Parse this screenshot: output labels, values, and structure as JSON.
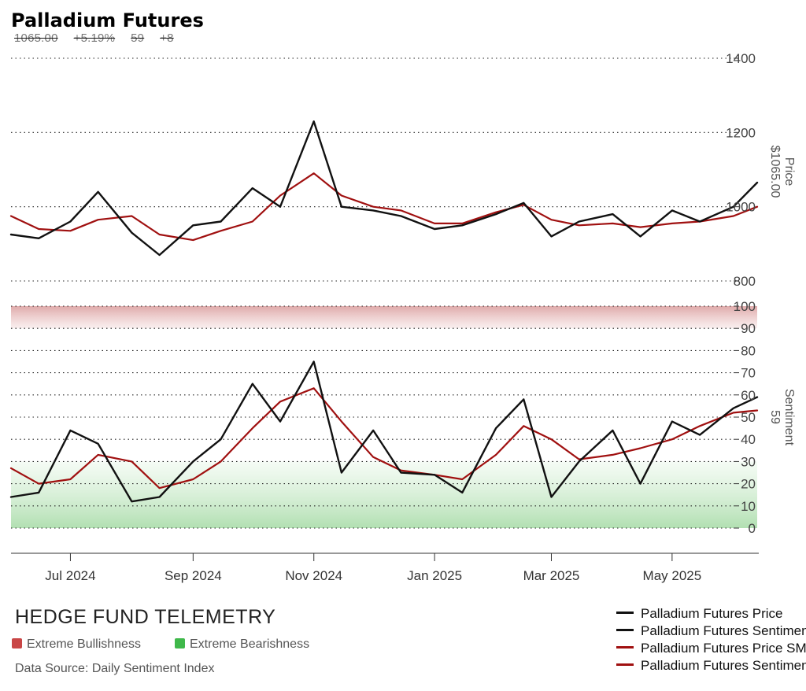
{
  "header": {
    "title": "Palladium Futures",
    "stats": [
      "1065.00",
      "+5.19%",
      "59",
      "+8"
    ]
  },
  "footer": {
    "brand": "HEDGE FUND TELEMETRY",
    "zone_legend": [
      {
        "label": "Extreme Bullishness",
        "color": "#c94646"
      },
      {
        "label": "Extreme Bearishness",
        "color": "#3fb84a"
      }
    ],
    "source": "Data Source: Daily Sentiment Index"
  },
  "legend": [
    {
      "label": "Palladium Futures Price",
      "color": "#111111"
    },
    {
      "label": "Palladium Futures Sentiment",
      "color": "#111111"
    },
    {
      "label": "Palladium Futures Price SMA",
      "color": "#a01010"
    },
    {
      "label": "Palladium Futures Sentiment SMA",
      "color": "#a01010"
    }
  ],
  "chart_data": [
    {
      "type": "line",
      "ylabel": "Price",
      "last_value_label": "$1065.00",
      "ylim": [
        800,
        1400
      ],
      "yticks": [
        "800",
        "1000",
        "1200",
        "1400"
      ],
      "x_dates": [
        "2024-06-01",
        "2024-06-15",
        "2024-07-01",
        "2024-07-15",
        "2024-08-01",
        "2024-08-15",
        "2024-09-01",
        "2024-09-15",
        "2024-10-01",
        "2024-10-15",
        "2024-11-01",
        "2024-11-15",
        "2024-12-01",
        "2024-12-15",
        "2025-01-01",
        "2025-01-15",
        "2025-02-01",
        "2025-02-15",
        "2025-03-01",
        "2025-03-15",
        "2025-04-01",
        "2025-04-15",
        "2025-05-01",
        "2025-05-15",
        "2025-06-01",
        "2025-06-13"
      ],
      "series": [
        {
          "name": "Palladium Futures Price",
          "color": "#111111",
          "values": [
            925,
            915,
            960,
            1040,
            930,
            870,
            950,
            960,
            1050,
            1000,
            1230,
            1000,
            990,
            975,
            940,
            950,
            980,
            1010,
            920,
            960,
            980,
            920,
            990,
            960,
            1000,
            1065
          ]
        },
        {
          "name": "Palladium Futures Price SMA",
          "color": "#a01010",
          "values": [
            975,
            940,
            935,
            965,
            975,
            925,
            910,
            935,
            960,
            1030,
            1090,
            1030,
            1000,
            990,
            955,
            955,
            985,
            1005,
            965,
            950,
            955,
            945,
            955,
            960,
            975,
            1000
          ]
        }
      ]
    },
    {
      "type": "line",
      "ylabel": "Sentiment",
      "last_value_label": "59",
      "ylim": [
        0,
        100
      ],
      "yticks": [
        "0",
        "10",
        "20",
        "30",
        "40",
        "50",
        "60",
        "70",
        "80",
        "90",
        "100"
      ],
      "zones": [
        {
          "name": "Extreme Bullishness",
          "from": 90,
          "to": 100,
          "color": "#c94646"
        },
        {
          "name": "Extreme Bearishness",
          "from": 0,
          "to": 30,
          "color": "#3fb84a"
        }
      ],
      "x_dates": [
        "2024-06-01",
        "2024-06-15",
        "2024-07-01",
        "2024-07-15",
        "2024-08-01",
        "2024-08-15",
        "2024-09-01",
        "2024-09-15",
        "2024-10-01",
        "2024-10-15",
        "2024-11-01",
        "2024-11-15",
        "2024-12-01",
        "2024-12-15",
        "2025-01-01",
        "2025-01-15",
        "2025-02-01",
        "2025-02-15",
        "2025-03-01",
        "2025-03-15",
        "2025-04-01",
        "2025-04-15",
        "2025-05-01",
        "2025-05-15",
        "2025-06-01",
        "2025-06-13"
      ],
      "series": [
        {
          "name": "Palladium Futures Sentiment",
          "color": "#111111",
          "values": [
            14,
            16,
            44,
            38,
            12,
            14,
            30,
            40,
            65,
            48,
            75,
            25,
            44,
            25,
            24,
            16,
            45,
            58,
            14,
            30,
            44,
            20,
            48,
            42,
            54,
            59
          ]
        },
        {
          "name": "Palladium Futures Sentiment SMA",
          "color": "#a01010",
          "values": [
            27,
            20,
            22,
            33,
            30,
            18,
            22,
            30,
            45,
            57,
            63,
            48,
            32,
            26,
            24,
            22,
            33,
            46,
            40,
            31,
            33,
            36,
            40,
            46,
            52,
            53
          ]
        }
      ]
    }
  ],
  "x_axis": {
    "ticks": [
      {
        "date": "2024-07-01",
        "label": "Jul 2024"
      },
      {
        "date": "2024-09-01",
        "label": "Sep 2024"
      },
      {
        "date": "2024-11-01",
        "label": "Nov 2024"
      },
      {
        "date": "2025-01-01",
        "label": "Jan 2025"
      },
      {
        "date": "2025-03-01",
        "label": "Mar 2025"
      },
      {
        "date": "2025-05-01",
        "label": "May 2025"
      }
    ]
  }
}
